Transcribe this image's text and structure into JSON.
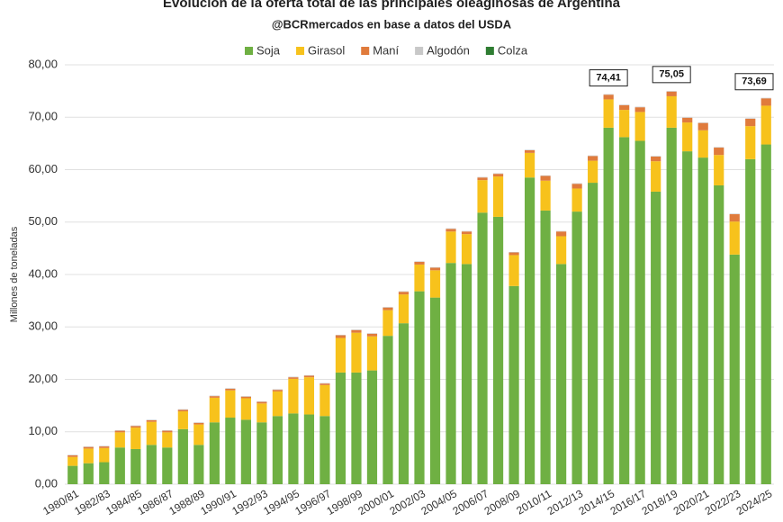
{
  "chart_data": {
    "type": "stacked_bar",
    "title": "Evolución de la oferta total de las principales oleaginosas de Argentina",
    "subtitle": "@BCRmercados en base a datos del USDA",
    "y_label": "Millones de toneladas",
    "categories": [
      "1980/81",
      null,
      "1982/83",
      null,
      "1984/85",
      null,
      "1986/87",
      null,
      "1988/89",
      null,
      "1990/91",
      null,
      "1992/93",
      null,
      "1994/95",
      null,
      "1996/97",
      null,
      "1998/99",
      null,
      "2000/01",
      null,
      "2002/03",
      null,
      "2004/05",
      null,
      "2006/07",
      null,
      "2008/09",
      null,
      "2010/11",
      null,
      "2012/13",
      null,
      "2014/15",
      null,
      "2016/17",
      null,
      "2018/19",
      null,
      "2020/21",
      null,
      "2022/23",
      null,
      "2024/25"
    ],
    "series": [
      {
        "name": "Soja",
        "color": "#6fb043",
        "values": [
          3.5,
          4.0,
          4.2,
          7.0,
          6.7,
          7.5,
          7.0,
          10.5,
          7.5,
          11.8,
          12.7,
          12.3,
          11.8,
          13.0,
          13.5,
          13.3,
          13.0,
          21.3,
          21.3,
          21.7,
          28.3,
          30.7,
          36.8,
          35.6,
          42.2,
          42.0,
          51.8,
          51.0,
          37.8,
          58.5,
          52.2,
          42.0,
          52.0,
          57.5,
          68.0,
          66.2,
          65.5,
          55.8,
          68.0,
          63.5,
          62.3,
          57.0,
          43.8,
          62.0,
          64.8
        ]
      },
      {
        "name": "Girasol",
        "color": "#f7c21c",
        "values": [
          1.7,
          2.8,
          2.7,
          2.9,
          4.1,
          4.4,
          2.9,
          3.4,
          3.9,
          4.7,
          5.2,
          4.1,
          3.6,
          4.7,
          6.6,
          7.1,
          5.9,
          6.6,
          7.6,
          6.5,
          4.9,
          5.5,
          5.1,
          5.2,
          6.0,
          5.7,
          6.2,
          7.7,
          5.9,
          4.7,
          5.7,
          5.3,
          4.4,
          4.2,
          5.4,
          5.2,
          5.5,
          5.8,
          6.0,
          5.5,
          5.2,
          5.8,
          6.3,
          6.3,
          7.4
        ]
      },
      {
        "name": "Maní",
        "color": "#e07b3c",
        "values": [
          0.3,
          0.3,
          0.3,
          0.3,
          0.3,
          0.3,
          0.3,
          0.3,
          0.3,
          0.3,
          0.3,
          0.3,
          0.3,
          0.3,
          0.3,
          0.3,
          0.3,
          0.5,
          0.5,
          0.5,
          0.5,
          0.5,
          0.5,
          0.5,
          0.5,
          0.5,
          0.5,
          0.5,
          0.5,
          0.5,
          0.9,
          0.9,
          0.9,
          0.9,
          0.9,
          0.9,
          0.9,
          0.9,
          0.9,
          0.9,
          1.4,
          1.4,
          1.4,
          1.4,
          1.4
        ]
      },
      {
        "name": "Algodón",
        "color": "#c8c8c8",
        "values": [
          0.1,
          0.1,
          0.1,
          0.1,
          0.1,
          0.1,
          0.1,
          0.1,
          0.1,
          0.1,
          0.1,
          0.1,
          0.1,
          0.1,
          0.1,
          0.1,
          0.1,
          0.1,
          0.1,
          0.1,
          0.1,
          0.1,
          0.1,
          0.1,
          0.1,
          0.1,
          0.1,
          0.1,
          0.1,
          0.1,
          0.1,
          0.1,
          0.1,
          0.1,
          0.1,
          0.1,
          0.1,
          0.1,
          0.1,
          0.1,
          0.1,
          0.1,
          0.1,
          0.1,
          0.1
        ]
      },
      {
        "name": "Colza",
        "color": "#2f7d32",
        "values": [
          0,
          0,
          0,
          0,
          0,
          0,
          0,
          0,
          0,
          0,
          0,
          0,
          0,
          0,
          0,
          0,
          0,
          0,
          0,
          0,
          0,
          0,
          0,
          0,
          0,
          0,
          0,
          0,
          0,
          0,
          0,
          0,
          0,
          0,
          0,
          0,
          0,
          0,
          0,
          0,
          0,
          0,
          0,
          0,
          0
        ]
      }
    ],
    "ylim": [
      0,
      80
    ],
    "yticks": [
      {
        "value": 0,
        "label": "0,00"
      },
      {
        "value": 10,
        "label": "10,00"
      },
      {
        "value": 20,
        "label": "20,00"
      },
      {
        "value": 30,
        "label": "30,00"
      },
      {
        "value": 40,
        "label": "40,00"
      },
      {
        "value": 50,
        "label": "50,00"
      },
      {
        "value": 60,
        "label": "60,00"
      },
      {
        "value": 70,
        "label": "70,00"
      },
      {
        "value": 80,
        "label": "80,00"
      }
    ],
    "grid": true,
    "legend": "top",
    "annotations": [
      {
        "category": "2014/15",
        "value": 74.41,
        "label": "74,41"
      },
      {
        "category": "2018/19",
        "value": 75.05,
        "label": "75,05"
      },
      {
        "category": "2024/25",
        "value": 73.69,
        "label": "73,69"
      }
    ]
  }
}
